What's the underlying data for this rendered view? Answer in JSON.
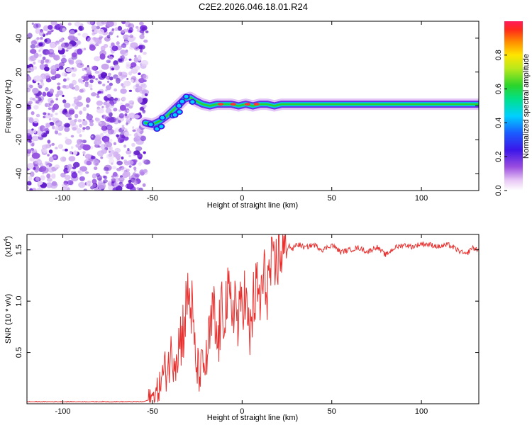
{
  "title": "C2E2.2026.046.18.01.R24",
  "chart_data": [
    {
      "type": "heatmap",
      "title": "C2E2.2026.046.18.01.R24",
      "xlabel": "Height of straight line (km)",
      "ylabel": "Frequency (Hz)",
      "xlim": [
        -120,
        132
      ],
      "ylim": [
        -50,
        50
      ],
      "xticks": [
        -100,
        -50,
        0,
        50,
        100
      ],
      "yticks": [
        -40,
        -20,
        0,
        20,
        40
      ],
      "xtick_labels": [
        "-100",
        "-50",
        "0",
        "50",
        "100"
      ],
      "ytick_labels": [
        "-40",
        "-20",
        "0",
        "20",
        "40"
      ],
      "noise_region_x": [
        -120,
        -53
      ],
      "ridge": {
        "description_of_trace": "frequency centroid vs height",
        "x": [
          -54,
          -50,
          -46,
          -42,
          -38,
          -35,
          -32,
          -29,
          -26,
          -22,
          -18,
          -14,
          -10,
          -6,
          -2,
          2,
          6,
          10,
          14,
          18,
          22,
          30,
          50,
          80,
          110,
          132
        ],
        "y": [
          -10,
          -11,
          -9,
          -6,
          -2,
          1,
          4,
          5,
          3,
          1,
          0,
          1,
          1,
          1,
          0,
          1,
          0,
          1,
          1,
          0,
          1,
          1,
          1,
          1,
          1,
          1
        ]
      },
      "colorbar": {
        "label": "Normalized spectral amplitude",
        "ticks": [
          0.0,
          0.2,
          0.4,
          0.6,
          0.8
        ],
        "tick_labels": [
          "0.0",
          "0.2",
          "0.4",
          "0.6",
          "0.8"
        ],
        "range": [
          0,
          1
        ]
      }
    },
    {
      "type": "line",
      "xlabel": "Height of straight line (km)",
      "ylabel": "SNR (10 * v/v)",
      "scale_label": "(x10",
      "scale_exponent": "4",
      "scale_close": ")",
      "xlim": [
        -120,
        132
      ],
      "ylim": [
        0,
        1.65
      ],
      "xticks": [
        -100,
        -50,
        0,
        50,
        100
      ],
      "yticks": [
        0.5,
        1.0,
        1.5
      ],
      "xtick_labels": [
        "-100",
        "-50",
        "0",
        "50",
        "100"
      ],
      "ytick_labels": [
        "0.5",
        "1.0",
        "1.5"
      ],
      "series": [
        {
          "name": "SNR",
          "color": "#e8312f",
          "x": [
            -120,
            -100,
            -80,
            -60,
            -55,
            -50,
            -47,
            -45,
            -42,
            -40,
            -37,
            -35,
            -32,
            -30,
            -28,
            -26,
            -24,
            -22,
            -20,
            -18,
            -16,
            -14,
            -12,
            -10,
            -8,
            -6,
            -4,
            -2,
            0,
            2,
            4,
            6,
            8,
            10,
            12,
            14,
            16,
            18,
            20,
            22,
            24,
            26,
            28,
            30,
            32,
            35,
            38,
            40,
            45,
            50,
            55,
            60,
            65,
            70,
            75,
            80,
            85,
            90,
            95,
            100,
            105,
            110,
            115,
            120,
            125,
            128,
            132
          ],
          "y": [
            0.02,
            0.02,
            0.02,
            0.02,
            0.02,
            0.05,
            0.12,
            0.25,
            0.35,
            0.45,
            0.5,
            0.6,
            0.8,
            1.1,
            0.9,
            0.4,
            0.3,
            0.35,
            0.4,
            0.65,
            0.9,
            0.55,
            0.8,
            0.95,
            1.0,
            0.9,
            1.05,
            0.7,
            1.1,
            1.0,
            0.6,
            0.95,
            1.1,
            1.0,
            1.2,
            1.15,
            1.3,
            1.25,
            1.45,
            1.5,
            1.45,
            1.55,
            1.5,
            1.55,
            1.55,
            1.52,
            1.54,
            1.55,
            1.5,
            1.55,
            1.48,
            1.5,
            1.52,
            1.48,
            1.53,
            1.45,
            1.52,
            1.55,
            1.53,
            1.56,
            1.55,
            1.53,
            1.55,
            1.5,
            1.45,
            1.52,
            1.5
          ]
        }
      ]
    }
  ]
}
